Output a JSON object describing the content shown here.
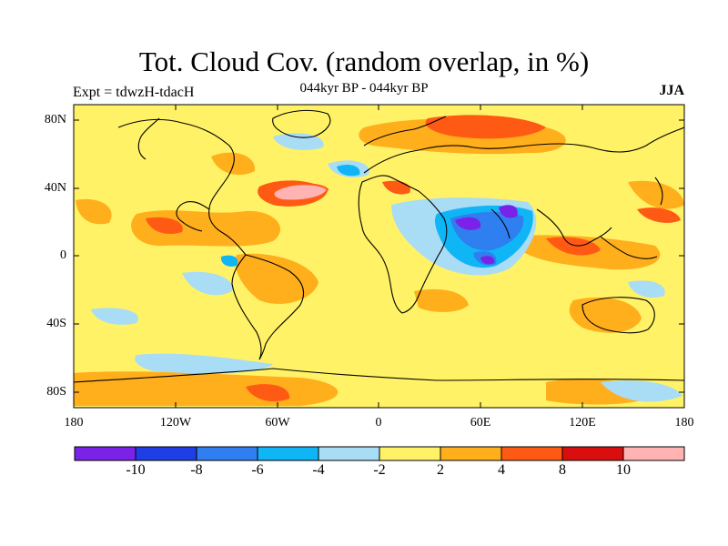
{
  "header": {
    "title": "Tot. Cloud Cov. (random overlap, in %)",
    "subtitle": "044kyr BP - 044kyr BP",
    "experiment": "Expt = tdwzH-tdacH",
    "season": "JJA"
  },
  "axes": {
    "y_ticks": [
      "80N",
      "40N",
      "0",
      "40S",
      "80S"
    ],
    "y_values": [
      80,
      40,
      0,
      -40,
      -80
    ],
    "x_ticks": [
      "180",
      "120W",
      "60W",
      "0",
      "60E",
      "120E",
      "180"
    ],
    "x_values": [
      -180,
      -120,
      -60,
      0,
      60,
      120,
      180
    ]
  },
  "colorbar": {
    "levels": [
      "-10",
      "-8",
      "-6",
      "-4",
      "-2",
      "2",
      "4",
      "8",
      "10"
    ],
    "colors": [
      "#7b22e8",
      "#1f3ee6",
      "#2f7ff0",
      "#0fb5f5",
      "#a9dcf5",
      "#fff266",
      "#ffae1c",
      "#ff5a14",
      "#d90f0f",
      "#ffb3b3"
    ]
  }
}
